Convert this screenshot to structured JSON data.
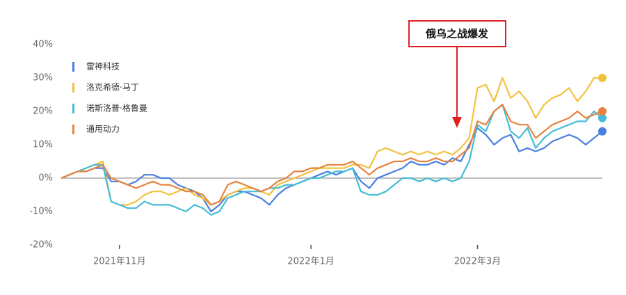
{
  "chart_data": {
    "type": "line",
    "categories": [
      null,
      null,
      null,
      null,
      null,
      null,
      null,
      "2021年11月",
      null,
      null,
      null,
      null,
      null,
      null,
      null,
      null,
      null,
      null,
      null,
      null,
      null,
      null,
      null,
      null,
      null,
      null,
      null,
      null,
      null,
      null,
      "2022年1月",
      null,
      null,
      null,
      null,
      null,
      null,
      null,
      null,
      null,
      null,
      null,
      null,
      null,
      null,
      null,
      null,
      null,
      null,
      null,
      "2022年3月",
      null,
      null,
      null,
      null,
      null,
      null,
      null,
      null,
      null,
      null,
      null,
      null,
      null,
      null,
      null
    ],
    "series": [
      {
        "name": "雷神科技",
        "color": "#4a7fe0",
        "values": [
          0,
          1,
          2,
          2,
          3,
          3,
          -1,
          -1,
          -2,
          -1,
          1,
          1,
          0,
          0,
          -2,
          -3,
          -4,
          -6,
          -10,
          -8,
          -5,
          -4,
          -4,
          -5,
          -6,
          -8,
          -5,
          -3,
          -2,
          -1,
          0,
          1,
          2,
          1,
          2,
          3,
          -1,
          -3,
          0,
          1,
          2,
          3,
          5,
          4,
          4,
          5,
          4,
          6,
          5,
          10,
          15,
          13,
          10,
          12,
          13,
          8,
          9,
          8,
          9,
          11,
          12,
          13,
          12,
          10,
          12,
          14
        ]
      },
      {
        "name": "洛克希德·马丁",
        "color": "#f2c13c",
        "values": [
          0,
          1,
          2,
          3,
          4,
          5,
          -7,
          -8,
          -8,
          -7,
          -5,
          -4,
          -4,
          -5,
          -4,
          -3,
          -5,
          -6,
          -8,
          -7,
          -5,
          -4,
          -3,
          -3,
          -4,
          -5,
          -2,
          -1,
          0,
          1,
          2,
          3,
          3,
          3,
          3,
          4,
          4,
          3,
          8,
          9,
          8,
          7,
          8,
          7,
          8,
          7,
          8,
          7,
          9,
          12,
          27,
          28,
          23,
          30,
          24,
          26,
          23,
          18,
          22,
          24,
          25,
          27,
          23,
          26,
          30,
          30
        ]
      },
      {
        "name": "诺斯洛普·格鲁曼",
        "color": "#45bcd6",
        "values": [
          0,
          1,
          2,
          3,
          4,
          4,
          -7,
          -8,
          -9,
          -9,
          -7,
          -8,
          -8,
          -8,
          -9,
          -10,
          -8,
          -9,
          -11,
          -10,
          -6,
          -5,
          -4,
          -4,
          -4,
          -3,
          -3,
          -2,
          -2,
          -1,
          0,
          0,
          1,
          2,
          2,
          3,
          -4,
          -5,
          -5,
          -4,
          -2,
          0,
          0,
          -1,
          0,
          -1,
          0,
          -1,
          0,
          5,
          16,
          14,
          20,
          22,
          14,
          12,
          15,
          9,
          12,
          14,
          15,
          16,
          17,
          17,
          20,
          18
        ]
      },
      {
        "name": "通用动力",
        "color": "#e8823c",
        "values": [
          0,
          1,
          2,
          2,
          3,
          4,
          0,
          -1,
          -2,
          -3,
          -2,
          -1,
          -2,
          -2,
          -3,
          -4,
          -4,
          -5,
          -8,
          -7,
          -2,
          -1,
          -2,
          -3,
          -4,
          -3,
          -1,
          0,
          2,
          2,
          3,
          3,
          4,
          4,
          4,
          5,
          3,
          1,
          3,
          4,
          5,
          5,
          6,
          5,
          5,
          6,
          5,
          5,
          7,
          9,
          17,
          16,
          20,
          22,
          17,
          16,
          16,
          12,
          14,
          16,
          17,
          18,
          20,
          18,
          19,
          20
        ]
      }
    ],
    "ylim": [
      -20,
      40
    ],
    "yticks": [
      {
        "value": -20,
        "label": "-20%"
      },
      {
        "value": -10,
        "label": "-10%"
      },
      {
        "value": 0,
        "label": "0%"
      },
      {
        "value": 10,
        "label": "10%"
      },
      {
        "value": 20,
        "label": "20%"
      },
      {
        "value": 30,
        "label": "30%"
      },
      {
        "value": 40,
        "label": "40%"
      }
    ],
    "annotation": "俄乌之战爆发",
    "annotation_color": "#e02020"
  }
}
